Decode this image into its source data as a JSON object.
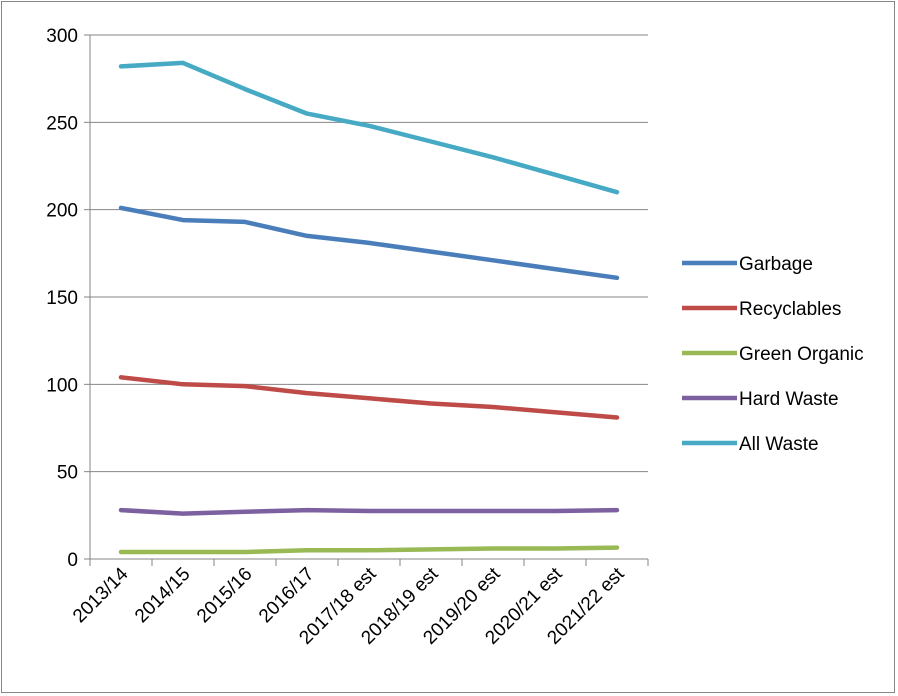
{
  "chart_data": {
    "type": "line",
    "categories": [
      "2013/14",
      "2014/15",
      "2015/16",
      "2016/17",
      "2017/18 est",
      "2018/19 est",
      "2019/20 est",
      "2020/21 est",
      "2021/22 est"
    ],
    "series": [
      {
        "name": "Garbage",
        "color": "#4a7ebb",
        "values": [
          201,
          194,
          193,
          185,
          181,
          176,
          171,
          166,
          161
        ]
      },
      {
        "name": "Recyclables",
        "color": "#be4b48",
        "values": [
          104,
          100,
          99,
          95,
          92,
          89,
          87,
          84,
          81
        ]
      },
      {
        "name": "Green Organic",
        "color": "#98b954",
        "values": [
          4,
          4,
          4,
          5,
          5,
          5.5,
          6,
          6,
          6.5
        ]
      },
      {
        "name": "Hard Waste",
        "color": "#7d60a0",
        "values": [
          28,
          26,
          27,
          28,
          27.5,
          27.5,
          27.5,
          27.5,
          28
        ]
      },
      {
        "name": "All Waste",
        "color": "#46aac5",
        "values": [
          282,
          284,
          269,
          255,
          248,
          239,
          230,
          220,
          210
        ]
      }
    ],
    "ylim": [
      0,
      300
    ],
    "yticks": [
      0,
      50,
      100,
      150,
      200,
      250,
      300
    ],
    "grid": true,
    "legend_position": "right",
    "title": "",
    "xlabel": "",
    "ylabel": ""
  }
}
